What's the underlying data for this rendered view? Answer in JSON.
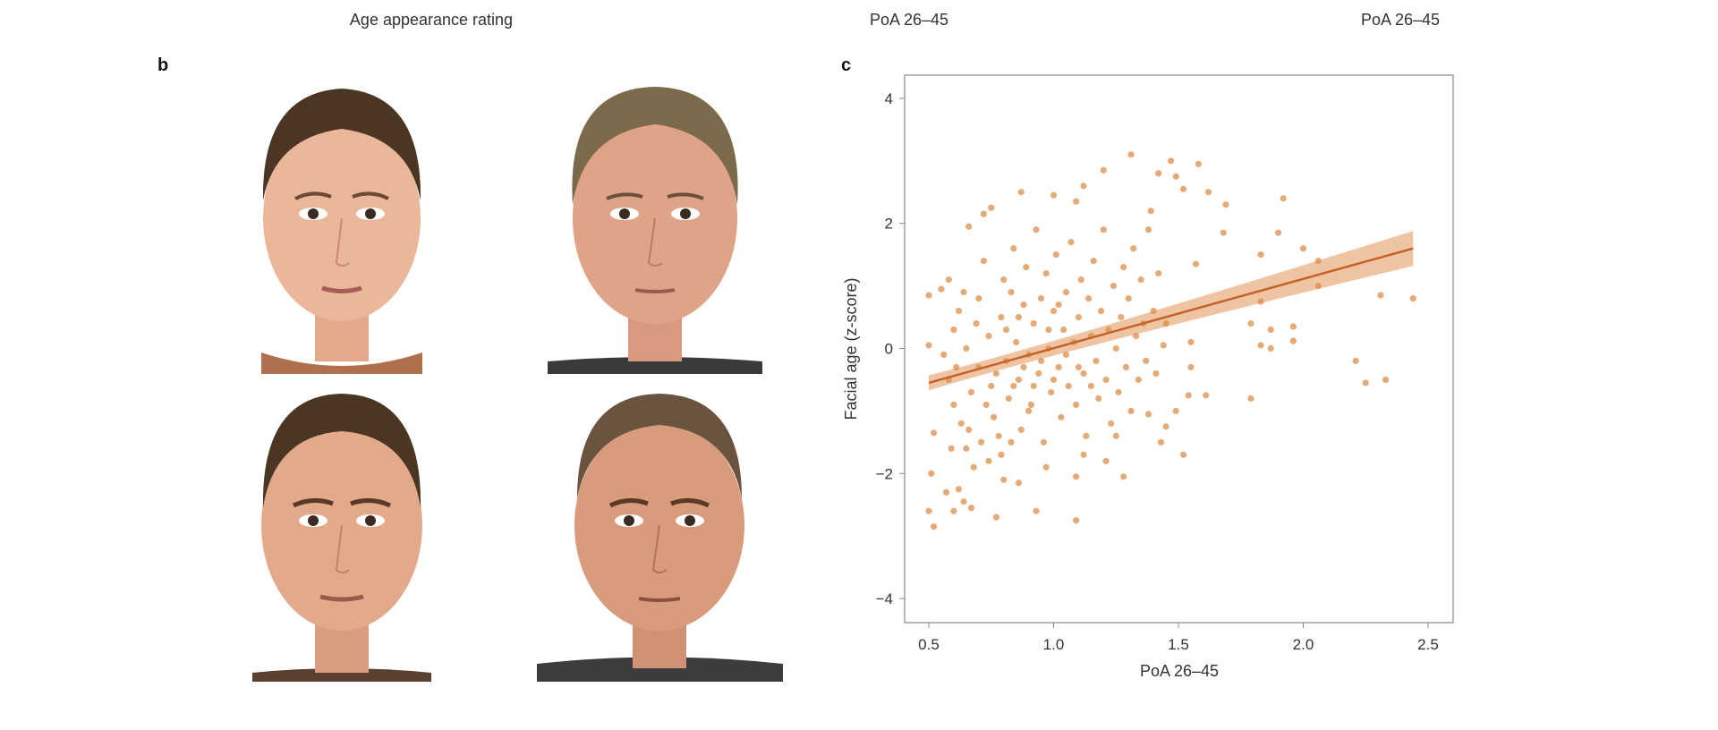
{
  "top_labels": [
    "Age appearance rating",
    "PoA 26–45",
    "PoA 26–45"
  ],
  "panels": {
    "b": "b",
    "c": "c"
  },
  "colors": {
    "point": "#d98a45",
    "line": "#c4622a",
    "band": "#eab083",
    "skin": "#e9b79a",
    "hair_dark": "#4a3622",
    "hair_grey": "#7c6a4c"
  },
  "chart_data": {
    "type": "scatter",
    "xlabel": "PoA 26–45",
    "ylabel": "Facial age (z-score)",
    "xlim": [
      0.4,
      2.6
    ],
    "ylim": [
      -4.4,
      4.3
    ],
    "xticks": [
      0.5,
      1.0,
      1.5,
      2.0,
      2.5
    ],
    "xtick_labels": [
      "0.5",
      "1.0",
      "1.5",
      "2.0",
      "2.5"
    ],
    "yticks": [
      4,
      2,
      0,
      -2,
      -4
    ],
    "ytick_labels": [
      "4",
      "2",
      "0",
      "−2",
      "−4"
    ],
    "grid": false,
    "regression": {
      "x": [
        0.5,
        2.44
      ],
      "y": [
        -0.55,
        1.6
      ],
      "ci_halfwidth_ends": [
        0.12,
        0.28
      ]
    },
    "points": [
      [
        1.31,
        3.1
      ],
      [
        1.47,
        3.0
      ],
      [
        1.58,
        2.95
      ],
      [
        1.2,
        2.85
      ],
      [
        1.42,
        2.8
      ],
      [
        1.49,
        2.75
      ],
      [
        1.12,
        2.6
      ],
      [
        1.52,
        2.55
      ],
      [
        1.62,
        2.5
      ],
      [
        0.87,
        2.5
      ],
      [
        1.0,
        2.45
      ],
      [
        1.92,
        2.4
      ],
      [
        1.09,
        2.35
      ],
      [
        1.69,
        2.3
      ],
      [
        0.75,
        2.25
      ],
      [
        0.72,
        2.15
      ],
      [
        1.39,
        2.2
      ],
      [
        0.66,
        1.95
      ],
      [
        1.9,
        1.85
      ],
      [
        1.68,
        1.85
      ],
      [
        2.0,
        1.6
      ],
      [
        1.83,
        1.5
      ],
      [
        2.06,
        1.4
      ],
      [
        1.57,
        1.35
      ],
      [
        2.06,
        1.0
      ],
      [
        2.31,
        0.85
      ],
      [
        2.44,
        0.8
      ],
      [
        1.83,
        0.75
      ],
      [
        1.79,
        0.4
      ],
      [
        1.96,
        0.35
      ],
      [
        1.87,
        0.3
      ],
      [
        1.83,
        0.05
      ],
      [
        1.87,
        0.0
      ],
      [
        1.96,
        0.12
      ],
      [
        2.21,
        -0.2
      ],
      [
        2.25,
        -0.55
      ],
      [
        2.33,
        -0.5
      ],
      [
        1.79,
        -0.8
      ],
      [
        1.61,
        -0.75
      ],
      [
        1.52,
        -1.7
      ],
      [
        0.5,
        0.85
      ],
      [
        0.5,
        0.05
      ],
      [
        0.5,
        -2.6
      ],
      [
        0.52,
        -2.85
      ],
      [
        0.51,
        -2.0
      ],
      [
        0.52,
        -1.35
      ],
      [
        0.77,
        -2.7
      ],
      [
        0.93,
        -2.6
      ],
      [
        1.09,
        -2.75
      ],
      [
        1.28,
        -2.05
      ],
      [
        1.09,
        -2.05
      ],
      [
        0.6,
        -2.6
      ],
      [
        0.57,
        -2.3
      ],
      [
        0.62,
        -2.25
      ],
      [
        0.64,
        -2.45
      ],
      [
        0.67,
        -2.55
      ],
      [
        0.8,
        -2.1
      ],
      [
        0.86,
        -2.15
      ],
      [
        1.43,
        -1.5
      ],
      [
        1.21,
        -1.8
      ],
      [
        1.45,
        -1.25
      ],
      [
        1.49,
        -1.0
      ],
      [
        1.38,
        -1.05
      ],
      [
        1.54,
        -0.75
      ],
      [
        1.55,
        -0.3
      ],
      [
        1.44,
        0.05
      ],
      [
        1.55,
        0.1
      ],
      [
        0.55,
        0.95
      ],
      [
        0.58,
        1.1
      ],
      [
        0.62,
        0.6
      ],
      [
        0.6,
        0.3
      ],
      [
        0.58,
        -0.5
      ],
      [
        0.6,
        -0.9
      ],
      [
        0.63,
        -1.2
      ],
      [
        0.65,
        -1.6
      ],
      [
        0.68,
        -1.9
      ],
      [
        0.7,
        -0.3
      ],
      [
        0.7,
        0.8
      ],
      [
        0.72,
        1.4
      ],
      [
        0.74,
        0.2
      ],
      [
        0.75,
        -0.6
      ],
      [
        0.76,
        -1.1
      ],
      [
        0.78,
        -1.4
      ],
      [
        0.79,
        0.5
      ],
      [
        0.8,
        1.1
      ],
      [
        0.81,
        -0.2
      ],
      [
        0.82,
        -0.8
      ],
      [
        0.83,
        0.9
      ],
      [
        0.84,
        1.6
      ],
      [
        0.85,
        0.1
      ],
      [
        0.86,
        -0.5
      ],
      [
        0.87,
        -1.3
      ],
      [
        0.88,
        0.7
      ],
      [
        0.89,
        1.3
      ],
      [
        0.9,
        -0.1
      ],
      [
        0.91,
        -0.9
      ],
      [
        0.92,
        0.4
      ],
      [
        0.93,
        1.9
      ],
      [
        0.94,
        -0.4
      ],
      [
        0.95,
        0.8
      ],
      [
        0.96,
        -1.5
      ],
      [
        0.97,
        1.2
      ],
      [
        0.98,
        0.0
      ],
      [
        0.99,
        -0.7
      ],
      [
        1.0,
        0.6
      ],
      [
        1.01,
        1.5
      ],
      [
        1.02,
        -0.3
      ],
      [
        1.03,
        -1.1
      ],
      [
        1.04,
        0.3
      ],
      [
        1.05,
        0.9
      ],
      [
        1.06,
        -0.6
      ],
      [
        1.07,
        1.7
      ],
      [
        1.08,
        0.1
      ],
      [
        1.09,
        -0.9
      ],
      [
        1.1,
        0.5
      ],
      [
        1.11,
        1.1
      ],
      [
        1.12,
        -0.4
      ],
      [
        1.13,
        -1.4
      ],
      [
        1.14,
        0.8
      ],
      [
        1.15,
        0.2
      ],
      [
        1.16,
        1.4
      ],
      [
        1.17,
        -0.2
      ],
      [
        1.18,
        -0.8
      ],
      [
        1.19,
        0.6
      ],
      [
        1.2,
        1.9
      ],
      [
        1.21,
        -0.5
      ],
      [
        1.22,
        0.3
      ],
      [
        1.23,
        -1.2
      ],
      [
        1.24,
        1.0
      ],
      [
        1.25,
        0.0
      ],
      [
        1.26,
        -0.7
      ],
      [
        1.27,
        0.5
      ],
      [
        1.28,
        1.3
      ],
      [
        1.29,
        -0.3
      ],
      [
        1.3,
        0.8
      ],
      [
        1.31,
        -1.0
      ],
      [
        1.32,
        1.6
      ],
      [
        1.33,
        0.2
      ],
      [
        1.34,
        -0.5
      ],
      [
        1.35,
        1.1
      ],
      [
        1.36,
        0.4
      ],
      [
        1.37,
        -0.2
      ],
      [
        1.38,
        1.9
      ],
      [
        1.4,
        0.6
      ],
      [
        1.41,
        -0.4
      ],
      [
        1.42,
        1.2
      ],
      [
        1.45,
        0.4
      ],
      [
        0.65,
        0.0
      ],
      [
        0.67,
        -0.7
      ],
      [
        0.69,
        0.4
      ],
      [
        0.71,
        -1.5
      ],
      [
        0.73,
        -0.9
      ],
      [
        0.77,
        -0.4
      ],
      [
        0.79,
        -1.7
      ],
      [
        0.81,
        0.3
      ],
      [
        0.84,
        -0.6
      ],
      [
        0.86,
        0.5
      ],
      [
        0.9,
        -1.0
      ],
      [
        0.95,
        -0.2
      ],
      [
        1.0,
        -0.5
      ],
      [
        1.05,
        -0.1
      ],
      [
        1.1,
        -0.3
      ],
      [
        1.15,
        -0.6
      ],
      [
        0.88,
        -0.3
      ],
      [
        0.92,
        -0.6
      ],
      [
        0.98,
        0.3
      ],
      [
        1.02,
        0.7
      ],
      [
        0.56,
        -0.1
      ],
      [
        0.59,
        -1.6
      ],
      [
        0.61,
        -0.3
      ],
      [
        0.64,
        0.9
      ],
      [
        0.66,
        -1.3
      ],
      [
        0.74,
        -1.8
      ],
      [
        0.83,
        -1.5
      ],
      [
        0.97,
        -1.9
      ],
      [
        1.12,
        -1.7
      ],
      [
        1.25,
        -1.4
      ]
    ]
  }
}
